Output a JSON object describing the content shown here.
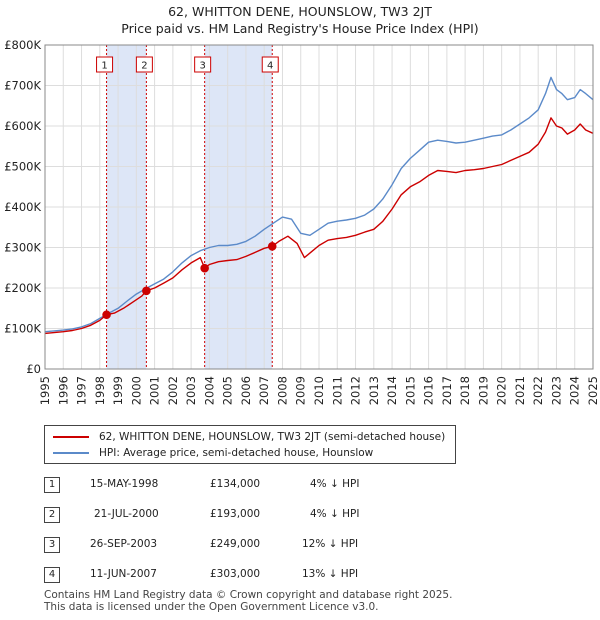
{
  "chart_data": {
    "type": "line",
    "title": "62, WHITTON DENE, HOUNSLOW, TW3 2JT",
    "subtitle": "Price paid vs. HM Land Registry's House Price Index (HPI)",
    "xlabel": "",
    "ylabel": "",
    "xlim": [
      1995,
      2025
    ],
    "ylim": [
      0,
      800000
    ],
    "x_ticks": [
      "1995",
      "1996",
      "1997",
      "1998",
      "1999",
      "2000",
      "2001",
      "2002",
      "2003",
      "2004",
      "2005",
      "2006",
      "2007",
      "2008",
      "2009",
      "2010",
      "2011",
      "2012",
      "2013",
      "2014",
      "2015",
      "2016",
      "2017",
      "2018",
      "2019",
      "2020",
      "2021",
      "2022",
      "2023",
      "2024",
      "2025"
    ],
    "y_ticks": [
      {
        "value": 0,
        "label": "£0"
      },
      {
        "value": 100000,
        "label": "£100K"
      },
      {
        "value": 200000,
        "label": "£200K"
      },
      {
        "value": 300000,
        "label": "£300K"
      },
      {
        "value": 400000,
        "label": "£400K"
      },
      {
        "value": 500000,
        "label": "£500K"
      },
      {
        "value": 600000,
        "label": "£600K"
      },
      {
        "value": 700000,
        "label": "£700K"
      },
      {
        "value": 800000,
        "label": "£800K"
      }
    ],
    "series": [
      {
        "name": "62, WHITTON DENE, HOUNSLOW, TW3 2JT (semi-detached house)",
        "color": "#cc0000",
        "x": [
          1995.0,
          1995.5,
          1996.0,
          1996.5,
          1997.0,
          1997.5,
          1998.0,
          1998.37,
          1998.8,
          1999.3,
          1999.8,
          2000.3,
          2000.55,
          2001.0,
          2001.5,
          2002.0,
          2002.5,
          2003.0,
          2003.5,
          2003.74,
          2004.0,
          2004.5,
          2005.0,
          2005.5,
          2006.0,
          2006.5,
          2007.0,
          2007.44,
          2007.8,
          2008.3,
          2008.8,
          2009.2,
          2009.6,
          2010.0,
          2010.5,
          2011.0,
          2011.5,
          2012.0,
          2012.5,
          2013.0,
          2013.5,
          2014.0,
          2014.5,
          2015.0,
          2015.5,
          2016.0,
          2016.5,
          2017.0,
          2017.5,
          2018.0,
          2018.5,
          2019.0,
          2019.5,
          2020.0,
          2020.5,
          2021.0,
          2021.5,
          2022.0,
          2022.4,
          2022.7,
          2023.0,
          2023.3,
          2023.6,
          2024.0,
          2024.3,
          2024.6,
          2025.0
        ],
        "values": [
          88000,
          90000,
          92000,
          95000,
          100000,
          108000,
          120000,
          134000,
          138000,
          150000,
          165000,
          180000,
          193000,
          200000,
          212000,
          225000,
          245000,
          262000,
          275000,
          249000,
          258000,
          265000,
          268000,
          270000,
          278000,
          288000,
          298000,
          303000,
          315000,
          328000,
          310000,
          275000,
          290000,
          305000,
          318000,
          322000,
          325000,
          330000,
          338000,
          345000,
          365000,
          395000,
          430000,
          450000,
          462000,
          478000,
          490000,
          488000,
          485000,
          490000,
          492000,
          495000,
          500000,
          505000,
          515000,
          525000,
          535000,
          555000,
          585000,
          620000,
          600000,
          595000,
          580000,
          590000,
          605000,
          590000,
          582000
        ]
      },
      {
        "name": "HPI: Average price, semi-detached house, Hounslow",
        "color": "#5b8ac9",
        "x": [
          1995.0,
          1995.5,
          1996.0,
          1996.5,
          1997.0,
          1997.5,
          1998.0,
          1998.5,
          1999.0,
          1999.5,
          2000.0,
          2000.5,
          2001.0,
          2001.5,
          2002.0,
          2002.5,
          2003.0,
          2003.5,
          2004.0,
          2004.5,
          2005.0,
          2005.5,
          2006.0,
          2006.5,
          2007.0,
          2007.5,
          2008.0,
          2008.5,
          2009.0,
          2009.5,
          2010.0,
          2010.5,
          2011.0,
          2011.5,
          2012.0,
          2012.5,
          2013.0,
          2013.5,
          2014.0,
          2014.5,
          2015.0,
          2015.5,
          2016.0,
          2016.5,
          2017.0,
          2017.5,
          2018.0,
          2018.5,
          2019.0,
          2019.5,
          2020.0,
          2020.5,
          2021.0,
          2021.5,
          2022.0,
          2022.4,
          2022.7,
          2023.0,
          2023.3,
          2023.6,
          2024.0,
          2024.3,
          2024.6,
          2025.0
        ],
        "values": [
          92000,
          94000,
          96000,
          99000,
          104000,
          112000,
          125000,
          138000,
          150000,
          168000,
          185000,
          198000,
          210000,
          222000,
          240000,
          262000,
          280000,
          292000,
          300000,
          305000,
          305000,
          308000,
          315000,
          328000,
          345000,
          360000,
          375000,
          370000,
          335000,
          330000,
          345000,
          360000,
          365000,
          368000,
          372000,
          380000,
          395000,
          420000,
          455000,
          495000,
          520000,
          540000,
          560000,
          565000,
          562000,
          558000,
          560000,
          565000,
          570000,
          575000,
          578000,
          590000,
          605000,
          620000,
          640000,
          680000,
          720000,
          690000,
          680000,
          665000,
          670000,
          690000,
          680000,
          665000
        ]
      }
    ],
    "sales": [
      {
        "id": "1",
        "date": "15-MAY-1998",
        "x": 1998.37,
        "price": 134000,
        "price_label": "£134,000",
        "hpi": "4% ↓ HPI"
      },
      {
        "id": "2",
        "date": "21-JUL-2000",
        "x": 2000.55,
        "price": 193000,
        "price_label": "£193,000",
        "hpi": "4% ↓ HPI"
      },
      {
        "id": "3",
        "date": "26-SEP-2003",
        "x": 2003.74,
        "price": 249000,
        "price_label": "£249,000",
        "hpi": "12% ↓ HPI"
      },
      {
        "id": "4",
        "date": "11-JUN-2007",
        "x": 2007.44,
        "price": 303000,
        "price_label": "£303,000",
        "hpi": "13% ↓ HPI"
      }
    ],
    "shaded_ranges": [
      [
        1998.37,
        2000.55
      ],
      [
        2003.74,
        2007.44
      ]
    ],
    "legend": [
      "62, WHITTON DENE, HOUNSLOW, TW3 2JT (semi-detached house)",
      "HPI: Average price, semi-detached house, Hounslow"
    ]
  },
  "footer": {
    "line1": "Contains HM Land Registry data © Crown copyright and database right 2025.",
    "line2": "This data is licensed under the Open Government Licence v3.0."
  },
  "colors": {
    "property": "#cc0000",
    "hpi": "#5b8ac9",
    "shade": "#dde6f7",
    "grid": "#dddddd"
  }
}
